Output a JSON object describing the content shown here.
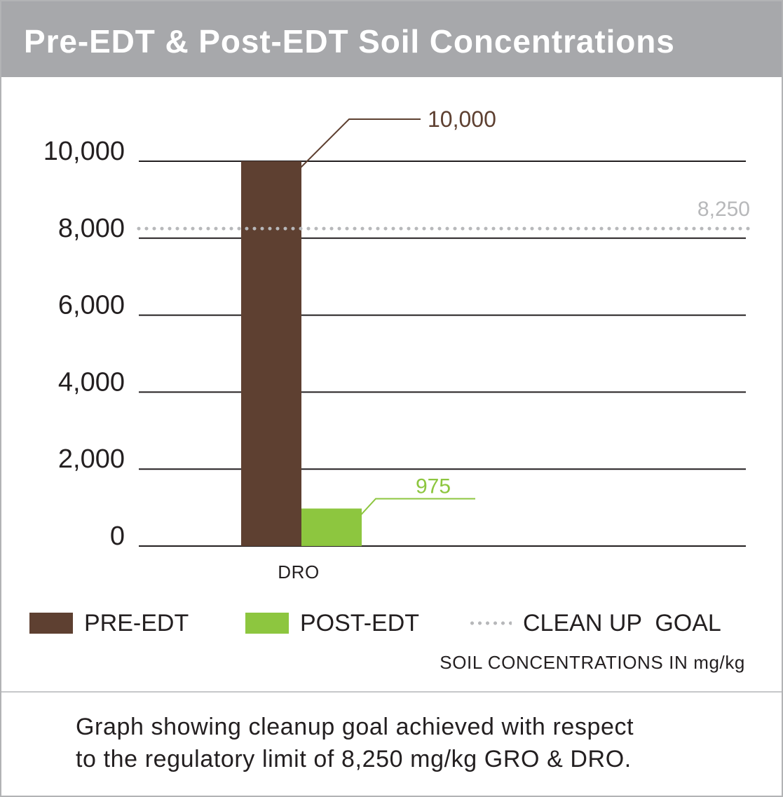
{
  "header": {
    "title": "Pre-EDT & Post-EDT Soil Concentrations"
  },
  "chart_data": {
    "type": "bar",
    "title": "Pre-EDT & Post-EDT Soil Concentrations",
    "categories": [
      "DRO"
    ],
    "series": [
      {
        "name": "PRE-EDT",
        "values": [
          10000
        ],
        "color": "#5e4031",
        "data_label": "10,000"
      },
      {
        "name": "POST-EDT",
        "values": [
          975
        ],
        "color": "#8dc63f",
        "data_label": "975"
      }
    ],
    "reference_line": {
      "name": "CLEAN UP  GOAL",
      "value": 8250,
      "label": "8,250",
      "color": "#b7b8ba",
      "style": "dotted"
    },
    "ylim": [
      0,
      10000
    ],
    "yticks": [
      0,
      2000,
      4000,
      6000,
      8000,
      10000
    ],
    "ytick_labels": [
      "0",
      "2,000",
      "4,000",
      "6,000",
      "8,000",
      "10,000"
    ],
    "grid": true,
    "legend_position": "bottom",
    "xlabel": "",
    "ylabel": "",
    "units_note": "SOIL CONCENTRATIONS IN mg/kg"
  },
  "legend": {
    "pre_label": "PRE-EDT",
    "post_label": "POST-EDT",
    "goal_label": "CLEAN UP  GOAL"
  },
  "units_note": "SOIL CONCENTRATIONS IN mg/kg",
  "caption": {
    "line1": "Graph showing cleanup goal achieved with respect",
    "line2": "to the regulatory limit of 8,250 mg/kg GRO & DRO."
  },
  "colors": {
    "header_bg": "#a7a8ab",
    "pre": "#5e4031",
    "post": "#8dc63f",
    "goal": "#b7b8ba"
  }
}
